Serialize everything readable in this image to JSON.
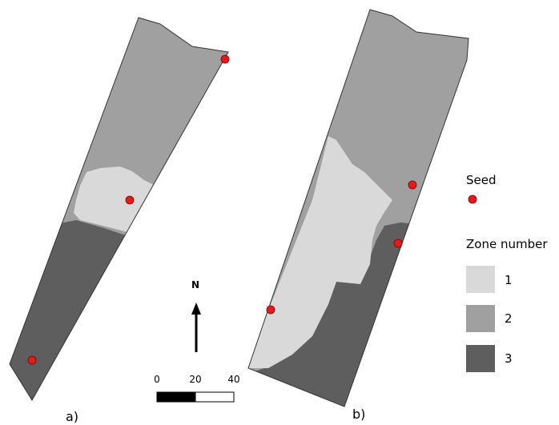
{
  "panels": [
    {
      "id": "a",
      "label": "a)"
    },
    {
      "id": "b",
      "label": "b)"
    }
  ],
  "north_arrow": {
    "label": "N"
  },
  "scale_bar": {
    "ticks": [
      "0",
      "20",
      "40"
    ]
  },
  "legend": {
    "seed_title": "Seed",
    "zone_title": "Zone number",
    "zones": [
      {
        "label": "1",
        "color": "#d9d9d9"
      },
      {
        "label": "2",
        "color": "#a0a0a0"
      },
      {
        "label": "3",
        "color": "#5e5e5e"
      }
    ]
  },
  "colors": {
    "zone1": "#d9d9d9",
    "zone2": "#a0a0a0",
    "zone3": "#5e5e5e",
    "seed": "#e41a1c",
    "outline": "#333333"
  }
}
